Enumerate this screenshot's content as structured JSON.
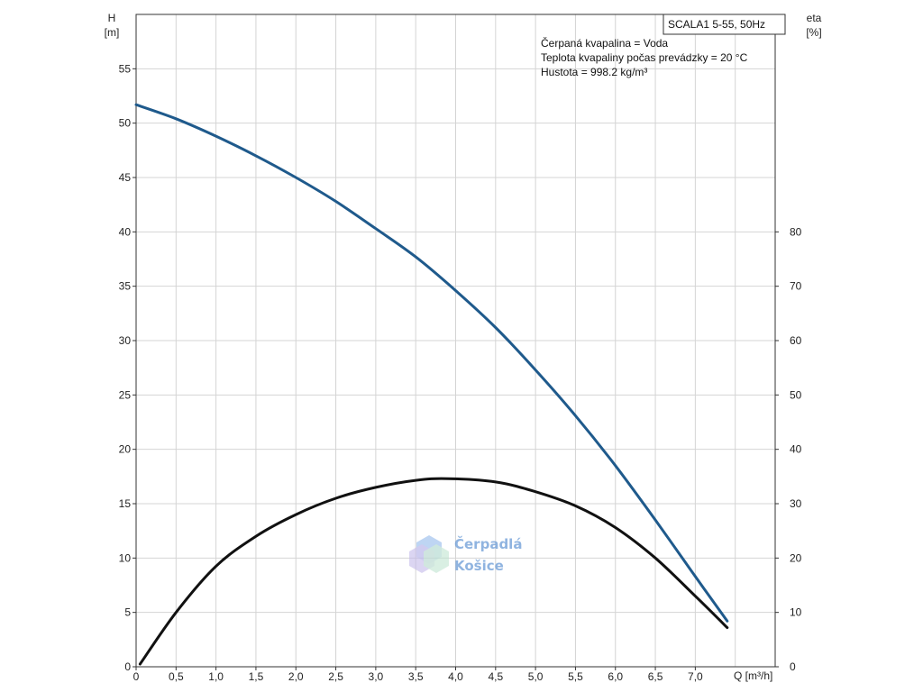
{
  "chart_data": {
    "type": "line",
    "title": "SCALA1 5-55, 50Hz",
    "info_lines": [
      "Čerpaná kvapalina = Voda",
      "Teplota kvapaliny počas prevádzky = 20 °C",
      "Hustota = 998.2 kg/m³"
    ],
    "xlabel": "Q [m³/h]",
    "ylabel_left": {
      "name": "H",
      "unit": "[m]"
    },
    "ylabel_right": {
      "name": "eta",
      "unit": "[%]"
    },
    "xlim": [
      0,
      8.0
    ],
    "ylim_left": [
      0,
      60
    ],
    "ylim_right": [
      0,
      120
    ],
    "x_ticks": [
      "0",
      "0,5",
      "1,0",
      "1,5",
      "2,0",
      "2,5",
      "3,0",
      "3,5",
      "4,0",
      "4,5",
      "5,0",
      "5,5",
      "6,0",
      "6,5",
      "7,0"
    ],
    "y_left_ticks": [
      "0",
      "5",
      "10",
      "15",
      "20",
      "25",
      "30",
      "35",
      "40",
      "45",
      "50",
      "55"
    ],
    "y_right_ticks": [
      "0",
      "10",
      "20",
      "30",
      "40",
      "50",
      "60",
      "70",
      "80"
    ],
    "grid": true,
    "series": [
      {
        "axis": "left",
        "color": "#1f5a8c",
        "x": [
          0,
          0.5,
          1.0,
          1.5,
          2.0,
          2.5,
          3.0,
          3.5,
          4.0,
          4.5,
          5.0,
          5.5,
          6.0,
          6.5,
          7.0,
          7.4
        ],
        "y": [
          51.7,
          50.4,
          48.8,
          47.0,
          45.0,
          42.8,
          40.3,
          37.7,
          34.6,
          31.2,
          27.3,
          23.1,
          18.5,
          13.5,
          8.3,
          4.2
        ]
      },
      {
        "axis": "right",
        "color": "#111111",
        "x": [
          0.05,
          0.5,
          1.0,
          1.5,
          2.0,
          2.5,
          3.0,
          3.5,
          3.9,
          4.5,
          5.0,
          5.5,
          6.0,
          6.5,
          7.0,
          7.4
        ],
        "y": [
          0.5,
          10.0,
          18.5,
          24.0,
          28.0,
          31.0,
          33.0,
          34.3,
          34.6,
          34.0,
          32.2,
          29.6,
          25.6,
          20.0,
          13.0,
          7.2
        ]
      }
    ]
  },
  "watermark": {
    "line1": "Čerpadlá",
    "line2": "Košice",
    "color": "#6b9bd6"
  }
}
